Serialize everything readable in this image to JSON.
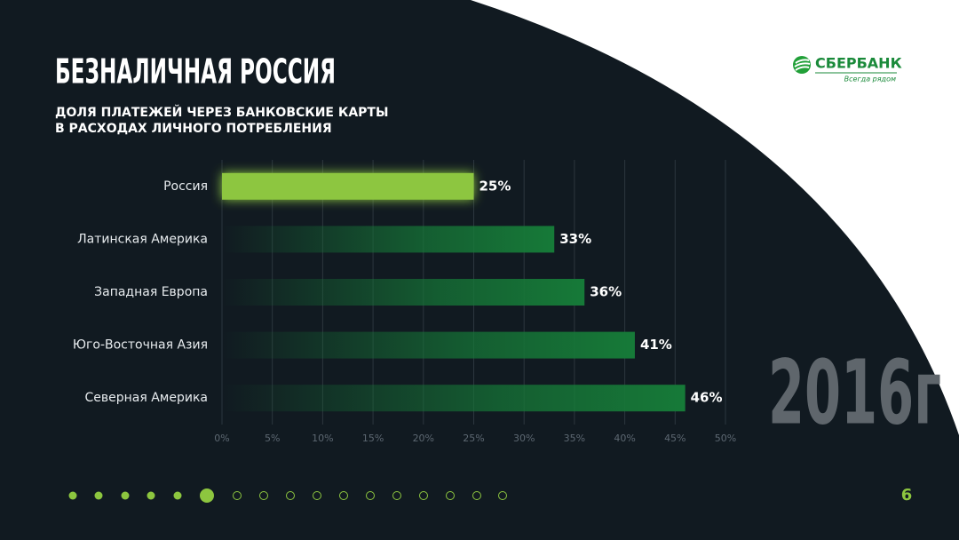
{
  "chart_data": {
    "type": "bar",
    "orientation": "horizontal",
    "title": "БЕЗНАЛИЧНАЯ РОССИЯ",
    "subtitle": [
      "ДОЛЯ ПЛАТЕЖЕЙ ЧЕРЕЗ БАНКОВСКИЕ КАРТЫ",
      "В РАСХОДАХ ЛИЧНОГО ПОТРЕБЛЕНИЯ"
    ],
    "categories": [
      "Россия",
      "Латинская Америка",
      "Западная Европа",
      "Юго-Восточная Азия",
      "Северная Америка"
    ],
    "values": [
      25,
      33,
      36,
      41,
      46
    ],
    "value_labels": [
      "25%",
      "33%",
      "36%",
      "41%",
      "46%"
    ],
    "colors": [
      "#8dc63f",
      "#167a38",
      "#167a38",
      "#167a38",
      "#167a38"
    ],
    "highlight": 0,
    "xlim": [
      0,
      50
    ],
    "xticks": [
      {
        "value": 0,
        "label": "0%"
      },
      {
        "value": 5,
        "label": "5%"
      },
      {
        "value": 10,
        "label": "10%"
      },
      {
        "value": 15,
        "label": "15%"
      },
      {
        "value": 20,
        "label": "20%"
      },
      {
        "value": 25,
        "label": "25%"
      },
      {
        "value": 30,
        "label": "30%"
      },
      {
        "value": 35,
        "label": "35%"
      },
      {
        "value": 40,
        "label": "40%"
      },
      {
        "value": 45,
        "label": "45%"
      },
      {
        "value": 50,
        "label": "50%"
      }
    ],
    "grid": true
  },
  "logo": {
    "name": "СБЕРБАНК",
    "tagline": "Всегда рядом"
  },
  "year": "2016г",
  "page_number": "6"
}
